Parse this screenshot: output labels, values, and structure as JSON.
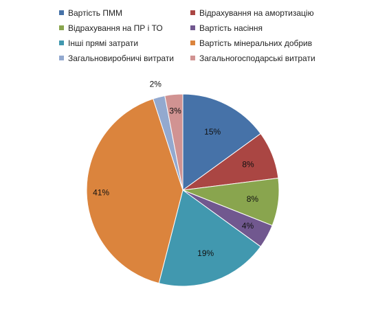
{
  "chart_data": {
    "type": "pie",
    "title": "",
    "categories": [
      "Вартість ПММ",
      "Відрахування на амортизацію",
      "Відрахування на ПР і ТО",
      "Вартість насіння",
      "Інші прямі затрати",
      "Вартість мінеральних добрив",
      "Загальновиробничі витрати",
      "Загальногосподарські витрати"
    ],
    "values": [
      15,
      8,
      8,
      4,
      19,
      41,
      2,
      3
    ],
    "data_labels": [
      "15%",
      "8%",
      "8%",
      "4%",
      "19%",
      "41%",
      "2%",
      "3%"
    ],
    "colors": [
      "#4672A8",
      "#AA4643",
      "#89A54E",
      "#71588F",
      "#4198AF",
      "#DB843D",
      "#93A9CF",
      "#D19392"
    ],
    "legend_position": "top"
  }
}
